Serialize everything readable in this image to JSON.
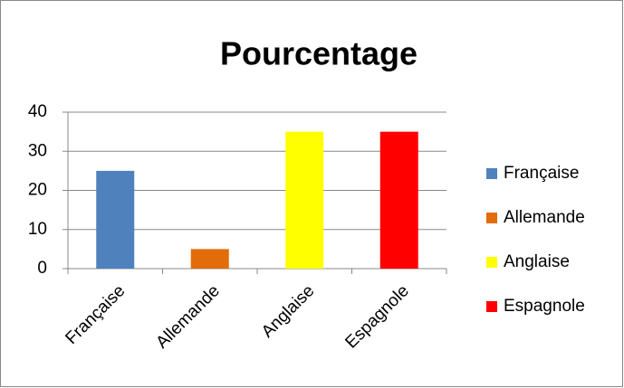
{
  "chart_data": {
    "type": "bar",
    "title": "Pourcentage",
    "categories": [
      "Française",
      "Allemande",
      "Anglaise",
      "Espagnole"
    ],
    "values": [
      25,
      5,
      35,
      35
    ],
    "colors": [
      "#4f81bd",
      "#e36c0a",
      "#ffff00",
      "#ff0000"
    ],
    "ylim": [
      0,
      40
    ],
    "yticks": [
      0,
      10,
      20,
      30,
      40
    ],
    "grid": true,
    "legend": "right"
  }
}
